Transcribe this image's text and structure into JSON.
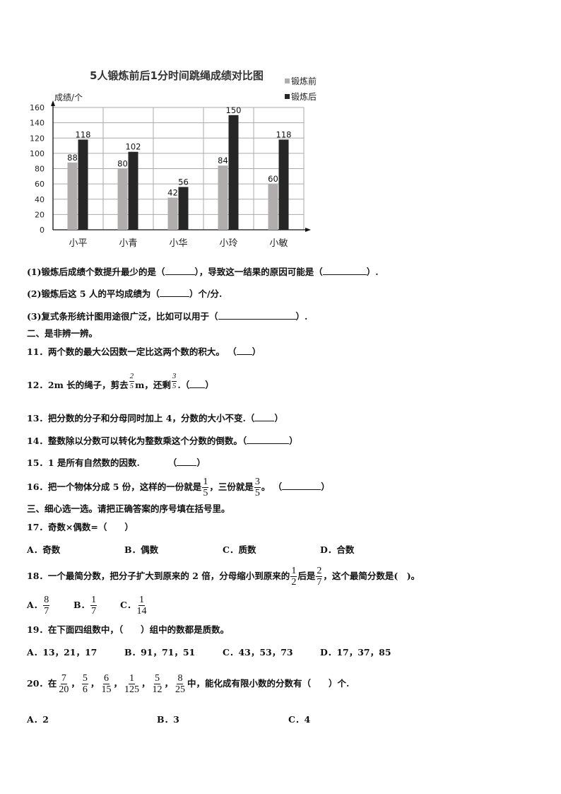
{
  "chart_data": {
    "type": "bar",
    "title": "5人锻炼前后1分时间跳绳成绩对比图",
    "ylabel": "成绩/个",
    "categories": [
      "小平",
      "小青",
      "小华",
      "小玲",
      "小敏"
    ],
    "series": [
      {
        "name": "锻炼前",
        "values": [
          88,
          80,
          42,
          84,
          60
        ],
        "color": "#b0adac"
      },
      {
        "name": "锻炼后",
        "values": [
          118,
          102,
          56,
          150,
          118
        ],
        "color": "#262626"
      }
    ],
    "ylim": [
      0,
      160
    ],
    "yticks": [
      "0",
      "20",
      "40",
      "60",
      "80",
      "100",
      "120",
      "140",
      "160"
    ],
    "grid": true,
    "legend": "top-right"
  },
  "questions": {
    "q1": {
      "a": "(1)锻炼后成绩个数提升最少的是（",
      "b": "），导致这一结果的原因可能是（",
      "c": "）."
    },
    "q2": {
      "a": "(2)锻炼后这 5 人的平均成绩为（",
      "b": "）个/分."
    },
    "q3": {
      "a": "(3)复式条形统计图用途很广泛，比如可以用于（",
      "b": "）."
    },
    "sec2": "二、是非辨一辨。",
    "q11": {
      "a": "11．两个数的最大公因数一定比这两个数的积大。 （",
      "b": "）"
    },
    "q12": {
      "a": "12．2m 长的绳子，剪去",
      "f1n": "2",
      "f1d": "5",
      "b": "m，还剩",
      "f2n": "3",
      "f2d": "5",
      "c": ".（",
      "d": "）"
    },
    "q13": {
      "a": "13．把分数的分子和分母同时加上 4，分数的大小不变.（",
      "b": "）"
    },
    "q14": {
      "a": "14．整数除以分数可以转化为整数乘这个分数的倒数。（",
      "b": "）"
    },
    "q15": {
      "a": "15．1 是所有自然数的因数.",
      "b": "（",
      "c": "）"
    },
    "q16": {
      "a": "16．把一个物体分成 5 份，这样的一份就是",
      "f1n": "1",
      "f1d": "5",
      "b": "，三份就是",
      "f2n": "3",
      "f2d": "5",
      "c": "。 （",
      "d": "）"
    },
    "sec3": "三、细心选一选。请把正确答案的序号填在括号里。",
    "q17": {
      "text": "17．奇数×偶数=（　　）",
      "options": [
        "A．奇数",
        "B．偶数",
        "C．质数",
        "D．合数"
      ]
    },
    "q18": {
      "a": "18．一个最简分数，把分子扩大到原来的 2 倍，分母缩小到原来的",
      "f1n": "1",
      "f1d": "2",
      "b": "后是",
      "f2n": "2",
      "f2d": "7",
      "c": "，这个最简分数是(　)。",
      "options": [
        {
          "label": "A．",
          "n": "8",
          "d": "7"
        },
        {
          "label": "B．",
          "n": "1",
          "d": "7"
        },
        {
          "label": "C．",
          "n": "1",
          "d": "14"
        }
      ]
    },
    "q19": {
      "text": "19．在下面四组数中，（　　）组中的数都是质数。",
      "options": [
        "A．13，21，17",
        "B．91，71，51",
        "C．43，53，73",
        "D．17，37，85"
      ]
    },
    "q20": {
      "a": "20．在",
      "fracs": [
        {
          "n": "7",
          "d": "20"
        },
        {
          "n": "5",
          "d": "6"
        },
        {
          "n": "6",
          "d": "15"
        },
        {
          "n": "1",
          "d": "125"
        },
        {
          "n": "5",
          "d": "12"
        },
        {
          "n": "8",
          "d": "25"
        }
      ],
      "sep": "，",
      "b": "中，能化成有限小数的分数有（　　）个.",
      "options": [
        "A．2",
        "B．3",
        "C．4"
      ]
    }
  }
}
